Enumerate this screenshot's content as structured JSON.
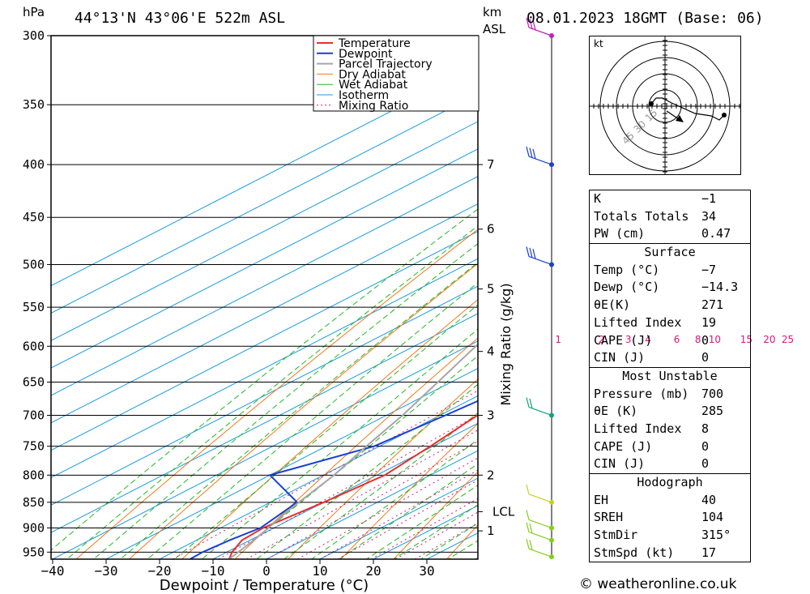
{
  "header": {
    "location": "44°13'N  43°06'E  522m  ASL",
    "datetime": "08.01.2023  18GMT  (Base: 06)",
    "unit_left": "hPa",
    "unit_km": "km",
    "unit_asl": "ASL"
  },
  "legend": [
    "Temperature",
    "Dewpoint",
    "Parcel Trajectory",
    "Dry Adiabat",
    "Wet Adiabat",
    "Isotherm",
    "Mixing Ratio"
  ],
  "colors": {
    "temperature": "#e8302a",
    "dewpoint": "#1a3fd6",
    "parcel": "#a6a6a6",
    "dry_adiabat": "#f07a1e",
    "wet_adiabat": "#1fb81f",
    "isotherm": "#1a9be0",
    "mixing_ratio": "#d6187a"
  },
  "chart_data": {
    "type": "line",
    "title": "",
    "xlabel": "Dewpoint / Temperature (°C)",
    "ylabel": "hPa",
    "right_label": "Mixing Ratio (g/kg)",
    "x_ticks": [
      -40,
      -30,
      -20,
      -10,
      0,
      10,
      20,
      30
    ],
    "pressure_levels": [
      300,
      350,
      400,
      450,
      500,
      550,
      600,
      650,
      700,
      750,
      800,
      850,
      900,
      950
    ],
    "km_ticks": [
      {
        "label": "7",
        "p": 400
      },
      {
        "label": "6",
        "p": 462
      },
      {
        "label": "5",
        "p": 528
      },
      {
        "label": "4",
        "p": 607
      },
      {
        "label": "3",
        "p": 700
      },
      {
        "label": "2",
        "p": 800
      },
      {
        "label": "LCL",
        "p": 868
      },
      {
        "label": "1",
        "p": 906
      }
    ],
    "mixing_ratio_labels": [
      "1",
      "2",
      "3",
      "4",
      "6",
      "8",
      "10",
      "15",
      "20",
      "25"
    ],
    "mixing_ratio_values": [
      1,
      2,
      3,
      4,
      6,
      8,
      10,
      15,
      20,
      25
    ],
    "series": [
      {
        "name": "Temperature",
        "points": [
          [
            965,
            -7
          ],
          [
            950,
            -9
          ],
          [
            925,
            -11.5
          ],
          [
            900,
            -12
          ],
          [
            850,
            -10
          ],
          [
            800,
            -8.5
          ],
          [
            750,
            -10.5
          ],
          [
            700,
            -13
          ],
          [
            650,
            -15.5
          ],
          [
            600,
            -19
          ],
          [
            550,
            -24
          ],
          [
            500,
            -29
          ],
          [
            450,
            -35
          ],
          [
            400,
            -42
          ],
          [
            350,
            -49
          ],
          [
            300,
            -54
          ]
        ]
      },
      {
        "name": "Dewpoint",
        "points": [
          [
            965,
            -14.3
          ],
          [
            950,
            -14.5
          ],
          [
            925,
            -13.8
          ],
          [
            900,
            -12.5
          ],
          [
            850,
            -15
          ],
          [
            800,
            -30
          ],
          [
            750,
            -21
          ],
          [
            700,
            -19
          ],
          [
            650,
            -17
          ],
          [
            600,
            -20
          ],
          [
            550,
            -25
          ],
          [
            500,
            -30
          ],
          [
            450,
            -36
          ],
          [
            400,
            -43
          ],
          [
            350,
            -50
          ],
          [
            300,
            -62
          ]
        ]
      },
      {
        "name": "Parcel Trajectory",
        "points": [
          [
            965,
            -7
          ],
          [
            930,
            -9
          ],
          [
            900,
            -11
          ],
          [
            868,
            -13.5
          ],
          [
            800,
            -18
          ],
          [
            750,
            -22.5
          ],
          [
            700,
            -27
          ],
          [
            650,
            -32.5
          ],
          [
            600,
            -38.5
          ],
          [
            550,
            -45
          ],
          [
            500,
            -52
          ],
          [
            450,
            -59.5
          ],
          [
            400,
            -67
          ],
          [
            350,
            -75
          ],
          [
            300,
            -84
          ]
        ]
      }
    ]
  },
  "hodograph": {
    "unit": "kt",
    "ring_labels": [
      "15",
      "30",
      "45"
    ]
  },
  "indices": {
    "top": [
      [
        "K",
        "-1"
      ],
      [
        "Totals Totals",
        "34"
      ],
      [
        "PW (cm)",
        "0.47"
      ]
    ],
    "surface_title": "Surface",
    "surface": [
      [
        "Temp (°C)",
        "-7"
      ],
      [
        "Dewp (°C)",
        "-14.3"
      ],
      [
        "θE(K)",
        "271"
      ],
      [
        "Lifted Index",
        "19"
      ],
      [
        "CAPE (J)",
        "0"
      ],
      [
        "CIN (J)",
        "0"
      ]
    ],
    "mu_title": "Most Unstable",
    "mu": [
      [
        "Pressure (mb)",
        "700"
      ],
      [
        "θE (K)",
        "285"
      ],
      [
        "Lifted Index",
        "8"
      ],
      [
        "CAPE (J)",
        "0"
      ],
      [
        "CIN (J)",
        "0"
      ]
    ],
    "hodo_title": "Hodograph",
    "hodo": [
      [
        "EH",
        "40"
      ],
      [
        "SREH",
        "104"
      ],
      [
        "StmDir",
        "315°"
      ],
      [
        "StmSpd (kt)",
        "17"
      ]
    ]
  },
  "credit": "© weatheronline.co.uk"
}
